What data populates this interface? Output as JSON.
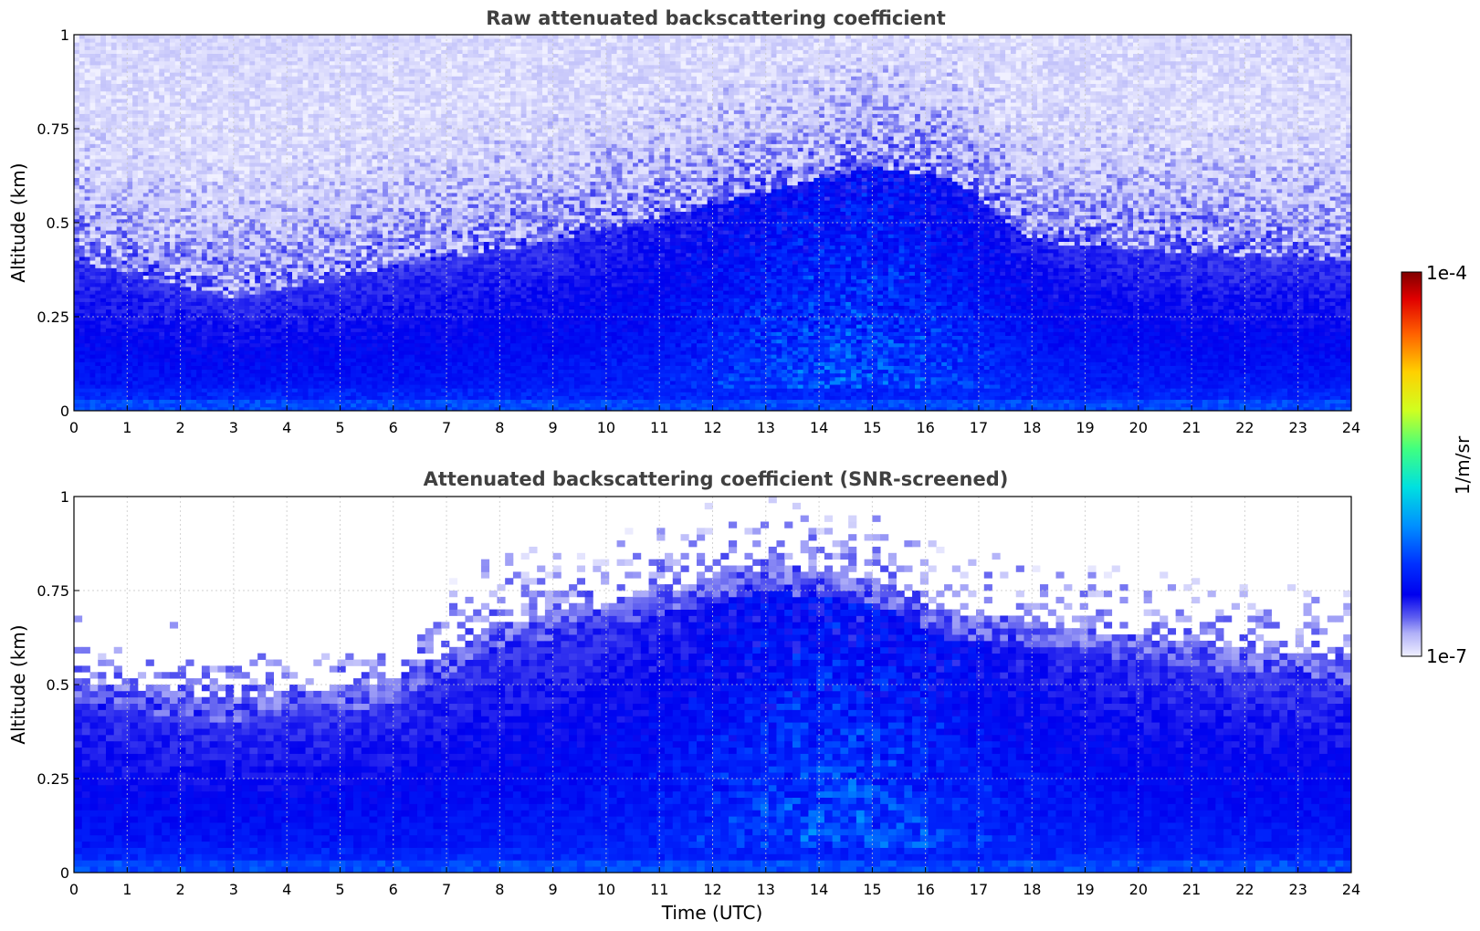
{
  "chart_data": [
    {
      "type": "heatmap",
      "title": "Raw attenuated backscattering coefficient",
      "xlabel": "",
      "ylabel": "Altitude (km)",
      "xlim": [
        0,
        24
      ],
      "ylim": [
        0,
        1
      ],
      "x_ticks": [
        "0",
        "1",
        "2",
        "3",
        "4",
        "5",
        "6",
        "7",
        "8",
        "9",
        "10",
        "11",
        "12",
        "13",
        "14",
        "15",
        "16",
        "17",
        "18",
        "19",
        "20",
        "21",
        "22",
        "23",
        "24"
      ],
      "y_ticks": [
        {
          "value": 0,
          "label": "0"
        },
        {
          "value": 0.25,
          "label": "0.25"
        },
        {
          "value": 0.5,
          "label": "0.5"
        },
        {
          "value": 0.75,
          "label": "0.75"
        },
        {
          "value": 1,
          "label": "1"
        }
      ],
      "grid": true,
      "value_scale": "log",
      "screened": false,
      "boundary_layer_top_km": [
        {
          "t": 0,
          "km": 0.4
        },
        {
          "t": 3,
          "km": 0.3
        },
        {
          "t": 6,
          "km": 0.38
        },
        {
          "t": 9,
          "km": 0.45
        },
        {
          "t": 12,
          "km": 0.55
        },
        {
          "t": 15,
          "km": 0.65
        },
        {
          "t": 16.5,
          "km": 0.62
        },
        {
          "t": 18,
          "km": 0.45
        },
        {
          "t": 21,
          "km": 0.42
        },
        {
          "t": 24,
          "km": 0.4
        }
      ]
    },
    {
      "type": "heatmap",
      "title": "Attenuated backscattering coefficient (SNR-screened)",
      "xlabel": "Time (UTC)",
      "ylabel": "Altitude (km)",
      "xlim": [
        0,
        24
      ],
      "ylim": [
        0,
        1
      ],
      "x_ticks": [
        "0",
        "1",
        "2",
        "3",
        "4",
        "5",
        "6",
        "7",
        "8",
        "9",
        "10",
        "11",
        "12",
        "13",
        "14",
        "15",
        "16",
        "17",
        "18",
        "19",
        "20",
        "21",
        "22",
        "23",
        "24"
      ],
      "y_ticks": [
        {
          "value": 0,
          "label": "0"
        },
        {
          "value": 0.25,
          "label": "0.25"
        },
        {
          "value": 0.5,
          "label": "0.5"
        },
        {
          "value": 0.75,
          "label": "0.75"
        },
        {
          "value": 1,
          "label": "1"
        }
      ],
      "grid": true,
      "value_scale": "log",
      "screened": true,
      "boundary_layer_top_km": [
        {
          "t": 0,
          "km": 0.45
        },
        {
          "t": 3,
          "km": 0.4
        },
        {
          "t": 6,
          "km": 0.45
        },
        {
          "t": 8,
          "km": 0.6
        },
        {
          "t": 10,
          "km": 0.65
        },
        {
          "t": 13,
          "km": 0.75
        },
        {
          "t": 15,
          "km": 0.72
        },
        {
          "t": 16.5,
          "km": 0.62
        },
        {
          "t": 18,
          "km": 0.6
        },
        {
          "t": 21,
          "km": 0.55
        },
        {
          "t": 24,
          "km": 0.5
        }
      ]
    }
  ],
  "colorbar": {
    "label": "1/m/sr",
    "min_label": "1e-7",
    "max_label": "1e-4",
    "scale": "log",
    "colormap": [
      "#f0f0ff",
      "#b0b0f8",
      "#6060f0",
      "#0000ee",
      "#0030ff",
      "#0090ff",
      "#00e0e0",
      "#40ff80",
      "#d0ff20",
      "#ffd000",
      "#ff6000",
      "#e00000",
      "#800000"
    ]
  }
}
